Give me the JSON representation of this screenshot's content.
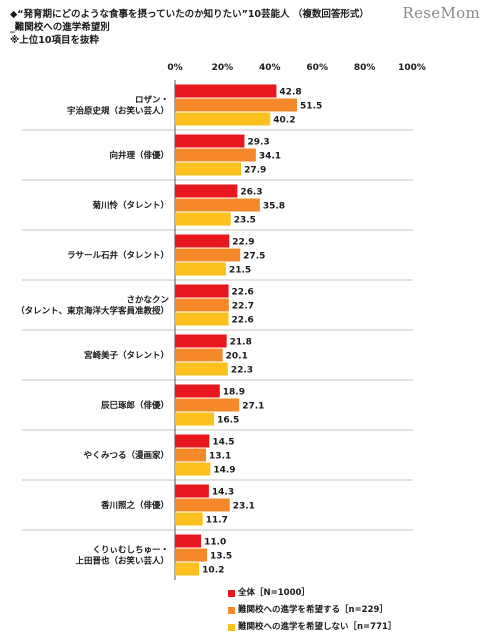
{
  "header": {
    "line1": "◆“発育期にどのような食事を摂っていたのか知りたい”10芸能人 （複数回答形式）",
    "line2": "_難関校への進学希望別",
    "line3": "※上位10項目を抜粋"
  },
  "logo": "ReseMom",
  "colors": {
    "all": "#e8161e",
    "want": "#f5892a",
    "not_want": "#fbbf1e"
  },
  "chart_data": {
    "type": "bar",
    "orientation": "horizontal",
    "xlim": [
      0,
      100
    ],
    "tick_labels": [
      "0%",
      "20%",
      "40%",
      "60%",
      "80%",
      "100%"
    ],
    "grid": false,
    "categories": [
      [
        "ロザン・",
        "宇治原史規（お笑い芸人）"
      ],
      [
        "向井理（俳優）"
      ],
      [
        "菊川怜（タレント）"
      ],
      [
        "ラサール石井（タレント）"
      ],
      [
        "さかなクン",
        "（タレント、東京海洋大学客員准教授）"
      ],
      [
        "宮崎美子（タレント）"
      ],
      [
        "辰巳琢郎（俳優）"
      ],
      [
        "やくみつる（漫画家）"
      ],
      [
        "香川照之（俳優）"
      ],
      [
        "くりぃむしちゅー・",
        "上田晋也（お笑い芸人）"
      ]
    ],
    "series": [
      {
        "name": "全体［N=1000］",
        "values": [
          42.8,
          29.3,
          26.3,
          22.9,
          22.6,
          21.8,
          18.9,
          14.5,
          14.3,
          11.0
        ]
      },
      {
        "name": "難関校への進学を希望する［n=229］",
        "values": [
          51.5,
          34.1,
          35.8,
          27.5,
          22.7,
          20.1,
          27.1,
          13.1,
          23.1,
          13.5
        ]
      },
      {
        "name": "難関校への進学を希望しない［n=771］",
        "values": [
          40.2,
          27.9,
          23.5,
          21.5,
          22.6,
          22.3,
          16.5,
          14.9,
          11.7,
          10.2
        ]
      }
    ],
    "value_labels": [
      [
        "42.8",
        "29.3",
        "26.3",
        "22.9",
        "22.6",
        "21.8",
        "18.9",
        "14.5",
        "14.3",
        "11.0"
      ],
      [
        "51.5",
        "34.1",
        "35.8",
        "27.5",
        "22.7",
        "20.1",
        "27.1",
        "13.1",
        "23.1",
        "13.5"
      ],
      [
        "40.2",
        "27.9",
        "23.5",
        "21.5",
        "22.6",
        "22.3",
        "16.5",
        "14.9",
        "11.7",
        "10.2"
      ]
    ],
    "legend_position": "bottom-right"
  }
}
